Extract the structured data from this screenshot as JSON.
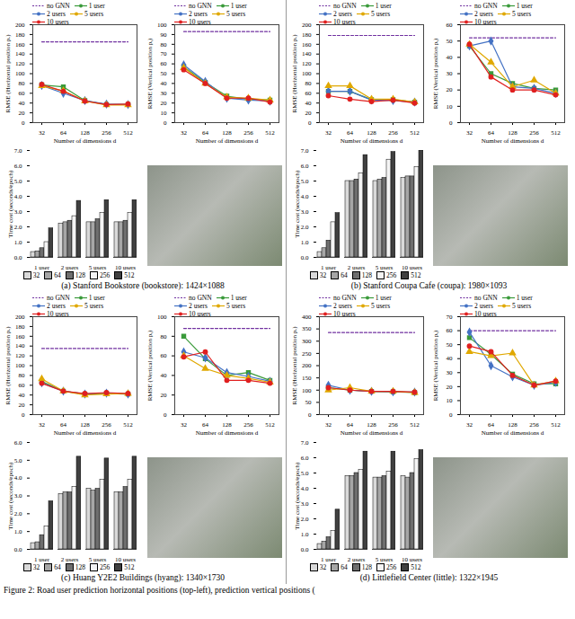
{
  "chart_data": [
    {
      "type": "line",
      "x_label": "Number of dimensions d",
      "y_label": "RMSE (Horizontal position pₓ)",
      "categories": [
        32,
        64,
        128,
        256,
        512
      ],
      "ylim": [
        0,
        200
      ],
      "yticks": [
        0,
        20,
        40,
        60,
        80,
        100,
        120,
        140,
        160,
        180,
        200
      ],
      "grid": false,
      "legend": "top",
      "series": [
        {
          "name": "no GNN",
          "color": "#7030a0",
          "line_style": "dashed",
          "marker": "none",
          "values": [
            165,
            165,
            165,
            165,
            165
          ]
        },
        {
          "name": "1 user",
          "color": "#3a9a3a",
          "line_style": "solid",
          "marker": "square",
          "values": [
            77,
            73,
            45,
            37,
            37
          ]
        },
        {
          "name": "2 users",
          "color": "#4472c4",
          "line_style": "solid",
          "marker": "diamond",
          "values": [
            76,
            60,
            45,
            38,
            37
          ]
        },
        {
          "name": "5 users",
          "color": "#e0a800",
          "line_style": "solid",
          "marker": "triangle",
          "values": [
            75,
            65,
            44,
            36,
            36
          ]
        },
        {
          "name": "10 users",
          "color": "#e02020",
          "line_style": "solid",
          "marker": "circle",
          "values": [
            78,
            64,
            44,
            37,
            38
          ]
        }
      ]
    },
    {
      "type": "line",
      "x_label": "Number of dimensions d",
      "y_label": "RMSE (Vertical position pᵧ)",
      "categories": [
        32,
        64,
        128,
        256,
        512
      ],
      "ylim": [
        0,
        100
      ],
      "yticks": [
        0,
        10,
        20,
        30,
        40,
        50,
        60,
        70,
        80,
        90,
        100
      ],
      "grid": false,
      "legend": "top",
      "series": [
        {
          "name": "no GNN",
          "color": "#7030a0",
          "line_style": "dashed",
          "marker": "none",
          "values": [
            93,
            93,
            93,
            93,
            93
          ]
        },
        {
          "name": "1 user",
          "color": "#3a9a3a",
          "line_style": "solid",
          "marker": "square",
          "values": [
            57,
            41,
            27,
            24,
            23
          ]
        },
        {
          "name": "2 users",
          "color": "#4472c4",
          "line_style": "solid",
          "marker": "diamond",
          "values": [
            59,
            42,
            25,
            23,
            22
          ]
        },
        {
          "name": "5 users",
          "color": "#e0a800",
          "line_style": "solid",
          "marker": "triangle",
          "values": [
            56,
            40,
            26,
            25,
            23
          ]
        },
        {
          "name": "10 users",
          "color": "#e02020",
          "line_style": "solid",
          "marker": "circle",
          "values": [
            54,
            40,
            25,
            25,
            21
          ]
        }
      ]
    },
    {
      "type": "bar",
      "y_label": "Time cost (seconds/epoch)",
      "categories": [
        "1 user",
        "2 users",
        "5 users",
        "10 users"
      ],
      "ylim": [
        0,
        7
      ],
      "yticks": [
        0,
        1,
        2,
        3,
        4,
        5,
        6,
        7
      ],
      "grid": false,
      "legend": "bottom",
      "series": [
        {
          "name": "32",
          "color": "#d9d9d9",
          "values": [
            0.35,
            2.2,
            2.3,
            2.3
          ]
        },
        {
          "name": "64",
          "color": "#a6a6a6",
          "values": [
            0.4,
            2.3,
            2.3,
            2.3
          ]
        },
        {
          "name": "128",
          "color": "#6e6e6e",
          "values": [
            0.6,
            2.4,
            2.5,
            2.4
          ]
        },
        {
          "name": "256",
          "color": "#f4f4f4",
          "values": [
            1.0,
            2.7,
            2.9,
            2.9
          ]
        },
        {
          "name": "512",
          "color": "#404040",
          "values": [
            1.9,
            3.7,
            3.75,
            3.75
          ]
        }
      ]
    },
    {
      "type": "line",
      "x_label": "Number of dimensions d",
      "y_label": "RMSE (Horizontal position pₓ)",
      "categories": [
        32,
        64,
        128,
        256,
        512
      ],
      "ylim": [
        0,
        200
      ],
      "yticks": [
        0,
        20,
        40,
        60,
        80,
        100,
        120,
        140,
        160,
        180,
        200
      ],
      "grid": false,
      "legend": "top",
      "series": [
        {
          "name": "no GNN",
          "color": "#7030a0",
          "line_style": "dashed",
          "marker": "none",
          "values": [
            178,
            178,
            178,
            178,
            178
          ]
        },
        {
          "name": "1 user",
          "color": "#3a9a3a",
          "line_style": "solid",
          "marker": "square",
          "values": [
            64,
            64,
            47,
            47,
            42
          ]
        },
        {
          "name": "2 users",
          "color": "#4472c4",
          "line_style": "solid",
          "marker": "diamond",
          "values": [
            64,
            64,
            46,
            45,
            42
          ]
        },
        {
          "name": "5 users",
          "color": "#e0a800",
          "line_style": "solid",
          "marker": "triangle",
          "values": [
            75,
            75,
            48,
            48,
            42
          ]
        },
        {
          "name": "10 users",
          "color": "#e02020",
          "line_style": "solid",
          "marker": "circle",
          "values": [
            55,
            48,
            43,
            46,
            40
          ]
        }
      ]
    },
    {
      "type": "line",
      "x_label": "Number of dimensions d",
      "y_label": "RMSE (Vertical position pᵧ)",
      "categories": [
        32,
        64,
        128,
        256,
        512
      ],
      "ylim": [
        0,
        60
      ],
      "yticks": [
        0,
        10,
        20,
        30,
        40,
        50,
        60
      ],
      "grid": false,
      "legend": "top",
      "series": [
        {
          "name": "no GNN",
          "color": "#7030a0",
          "line_style": "dashed",
          "marker": "none",
          "values": [
            52,
            52,
            52,
            52,
            52
          ]
        },
        {
          "name": "1 user",
          "color": "#3a9a3a",
          "line_style": "solid",
          "marker": "square",
          "values": [
            47,
            30,
            24,
            21,
            20
          ]
        },
        {
          "name": "2 users",
          "color": "#4472c4",
          "line_style": "solid",
          "marker": "diamond",
          "values": [
            47,
            50,
            22,
            21,
            18
          ]
        },
        {
          "name": "5 users",
          "color": "#e0a800",
          "line_style": "solid",
          "marker": "triangle",
          "values": [
            48,
            37,
            22,
            26,
            18
          ]
        },
        {
          "name": "10 users",
          "color": "#e02020",
          "line_style": "solid",
          "marker": "circle",
          "values": [
            48,
            28,
            20,
            20,
            17
          ]
        }
      ]
    },
    {
      "type": "bar",
      "y_label": "Time cost (seconds/epoch)",
      "categories": [
        "1 user",
        "2 users",
        "5 users",
        "10 users"
      ],
      "ylim": [
        0,
        7
      ],
      "yticks": [
        0,
        1,
        2,
        3,
        4,
        5,
        6,
        7
      ],
      "grid": false,
      "legend": "bottom",
      "series": [
        {
          "name": "32",
          "color": "#d9d9d9",
          "values": [
            0.35,
            5.0,
            5.0,
            5.2
          ]
        },
        {
          "name": "64",
          "color": "#a6a6a6",
          "values": [
            0.6,
            5.0,
            5.1,
            5.3
          ]
        },
        {
          "name": "128",
          "color": "#6e6e6e",
          "values": [
            1.1,
            5.1,
            5.2,
            5.3
          ]
        },
        {
          "name": "256",
          "color": "#f4f4f4",
          "values": [
            2.3,
            5.5,
            6.4,
            5.9
          ]
        },
        {
          "name": "512",
          "color": "#404040",
          "values": [
            2.9,
            6.7,
            6.9,
            7.0
          ]
        }
      ]
    },
    {
      "type": "line",
      "x_label": "Number of dimensions d",
      "y_label": "RMSE (Horizontal position pₓ)",
      "categories": [
        32,
        64,
        128,
        256,
        512
      ],
      "ylim": [
        0,
        200
      ],
      "yticks": [
        0,
        20,
        40,
        60,
        80,
        100,
        120,
        140,
        160,
        180,
        200
      ],
      "grid": false,
      "legend": "top",
      "series": [
        {
          "name": "no GNN",
          "color": "#7030a0",
          "line_style": "dashed",
          "marker": "none",
          "values": [
            135,
            135,
            135,
            135,
            135
          ]
        },
        {
          "name": "1 user",
          "color": "#3a9a3a",
          "line_style": "solid",
          "marker": "square",
          "values": [
            68,
            48,
            42,
            43,
            42
          ]
        },
        {
          "name": "2 users",
          "color": "#4472c4",
          "line_style": "solid",
          "marker": "diamond",
          "values": [
            65,
            48,
            42,
            44,
            42
          ]
        },
        {
          "name": "5 users",
          "color": "#e0a800",
          "line_style": "solid",
          "marker": "triangle",
          "values": [
            73,
            48,
            40,
            42,
            43
          ]
        },
        {
          "name": "10 users",
          "color": "#e02020",
          "line_style": "solid",
          "marker": "circle",
          "values": [
            64,
            48,
            43,
            45,
            43
          ]
        }
      ]
    },
    {
      "type": "line",
      "x_label": "Number of dimensions d",
      "y_label": "RMSE (Vertical position pᵧ)",
      "categories": [
        32,
        64,
        128,
        256,
        512
      ],
      "ylim": [
        0,
        100
      ],
      "yticks": [
        0,
        20,
        40,
        60,
        80,
        100
      ],
      "grid": false,
      "legend": "top",
      "series": [
        {
          "name": "no GNN",
          "color": "#7030a0",
          "line_style": "dashed",
          "marker": "none",
          "values": [
            88,
            88,
            88,
            88,
            88
          ]
        },
        {
          "name": "1 user",
          "color": "#3a9a3a",
          "line_style": "solid",
          "marker": "square",
          "values": [
            80,
            57,
            40,
            43,
            35
          ]
        },
        {
          "name": "2 users",
          "color": "#4472c4",
          "line_style": "solid",
          "marker": "diamond",
          "values": [
            64,
            58,
            43,
            39,
            34
          ]
        },
        {
          "name": "5 users",
          "color": "#e0a800",
          "line_style": "solid",
          "marker": "triangle",
          "values": [
            60,
            47,
            40,
            37,
            33
          ]
        },
        {
          "name": "10 users",
          "color": "#e02020",
          "line_style": "solid",
          "marker": "circle",
          "values": [
            59,
            64,
            35,
            35,
            32
          ]
        }
      ]
    },
    {
      "type": "bar",
      "y_label": "Time cost (seconds/epoch)",
      "categories": [
        "1 user",
        "2 users",
        "5 users",
        "10 users"
      ],
      "ylim": [
        0,
        6
      ],
      "yticks": [
        0,
        1,
        2,
        3,
        4,
        5,
        6
      ],
      "grid": false,
      "legend": "bottom",
      "series": [
        {
          "name": "32",
          "color": "#d9d9d9",
          "values": [
            0.35,
            3.1,
            3.4,
            3.2
          ]
        },
        {
          "name": "64",
          "color": "#a6a6a6",
          "values": [
            0.4,
            3.2,
            3.3,
            3.2
          ]
        },
        {
          "name": "128",
          "color": "#6e6e6e",
          "values": [
            0.8,
            3.2,
            3.4,
            3.5
          ]
        },
        {
          "name": "256",
          "color": "#f4f4f4",
          "values": [
            1.3,
            3.5,
            3.9,
            3.9
          ]
        },
        {
          "name": "512",
          "color": "#404040",
          "values": [
            2.7,
            5.2,
            5.1,
            5.2
          ]
        }
      ]
    },
    {
      "type": "line",
      "x_label": "Number of dimensions d",
      "y_label": "RMSE (Horizontal position pₓ)",
      "categories": [
        32,
        64,
        128,
        256,
        512
      ],
      "ylim": [
        0,
        400
      ],
      "yticks": [
        0,
        50,
        100,
        150,
        200,
        250,
        300,
        350,
        400
      ],
      "grid": false,
      "legend": "top",
      "series": [
        {
          "name": "no GNN",
          "color": "#7030a0",
          "line_style": "dashed",
          "marker": "none",
          "values": [
            335,
            335,
            335,
            335,
            335
          ]
        },
        {
          "name": "1 user",
          "color": "#3a9a3a",
          "line_style": "solid",
          "marker": "square",
          "values": [
            110,
            100,
            95,
            93,
            90
          ]
        },
        {
          "name": "2 users",
          "color": "#4472c4",
          "line_style": "solid",
          "marker": "diamond",
          "values": [
            120,
            100,
            95,
            93,
            92
          ]
        },
        {
          "name": "5 users",
          "color": "#e0a800",
          "line_style": "solid",
          "marker": "triangle",
          "values": [
            100,
            110,
            95,
            95,
            90
          ]
        },
        {
          "name": "10 users",
          "color": "#e02020",
          "line_style": "solid",
          "marker": "circle",
          "values": [
            110,
            100,
            95,
            95,
            92
          ]
        }
      ]
    },
    {
      "type": "line",
      "x_label": "Number of dimensions d",
      "y_label": "RMSE (Vertical position pᵧ)",
      "categories": [
        32,
        64,
        128,
        256,
        512
      ],
      "ylim": [
        0,
        70
      ],
      "yticks": [
        0,
        10,
        20,
        30,
        40,
        50,
        60,
        70
      ],
      "grid": false,
      "legend": "top",
      "series": [
        {
          "name": "no GNN",
          "color": "#7030a0",
          "line_style": "dashed",
          "marker": "none",
          "values": [
            60,
            60,
            60,
            60,
            60
          ]
        },
        {
          "name": "1 user",
          "color": "#3a9a3a",
          "line_style": "solid",
          "marker": "square",
          "values": [
            55,
            43,
            29,
            22,
            22
          ]
        },
        {
          "name": "2 users",
          "color": "#4472c4",
          "line_style": "solid",
          "marker": "diamond",
          "values": [
            59,
            35,
            27,
            21,
            23
          ]
        },
        {
          "name": "5 users",
          "color": "#e0a800",
          "line_style": "solid",
          "marker": "triangle",
          "values": [
            45,
            42,
            44,
            21,
            24
          ]
        },
        {
          "name": "10 users",
          "color": "#e02020",
          "line_style": "solid",
          "marker": "circle",
          "values": [
            49,
            45,
            28,
            21,
            24
          ]
        }
      ]
    },
    {
      "type": "bar",
      "y_label": "Time cost (seconds/epoch)",
      "categories": [
        "1 user",
        "2 users",
        "5 users",
        "10 users"
      ],
      "ylim": [
        0,
        7
      ],
      "yticks": [
        0,
        1,
        2,
        3,
        4,
        5,
        6,
        7
      ],
      "grid": false,
      "legend": "bottom",
      "series": [
        {
          "name": "32",
          "color": "#d9d9d9",
          "values": [
            0.35,
            4.8,
            4.7,
            4.8
          ]
        },
        {
          "name": "64",
          "color": "#a6a6a6",
          "values": [
            0.5,
            4.8,
            4.7,
            4.7
          ]
        },
        {
          "name": "128",
          "color": "#6e6e6e",
          "values": [
            0.8,
            5.0,
            4.8,
            5.0
          ]
        },
        {
          "name": "256",
          "color": "#f4f4f4",
          "values": [
            1.2,
            5.2,
            5.1,
            5.9
          ]
        },
        {
          "name": "512",
          "color": "#404040",
          "values": [
            2.6,
            6.4,
            6.4,
            6.5
          ]
        }
      ]
    }
  ],
  "panel_captions": [
    "(a) Stanford Bookstore (bookstore): 1424×1088",
    "(b) Stanford Coupa Cafe (coupa): 1980×1093",
    "(c) Huang Y2E2 Buildings (hyang): 1340×1730",
    "(d) Littlefield Center (little): 1322×1945"
  ],
  "figure_caption": "Figure 2: Road user prediction horizontal positions (top-left), prediction vertical positions ("
}
